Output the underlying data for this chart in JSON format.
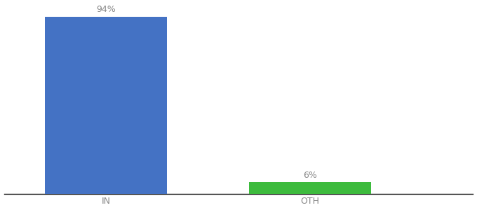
{
  "categories": [
    "IN",
    "OTH"
  ],
  "values": [
    94,
    6
  ],
  "bar_colors": [
    "#4472c4",
    "#3dbb3d"
  ],
  "label_texts": [
    "94%",
    "6%"
  ],
  "background_color": "#ffffff",
  "ylim": [
    0,
    100
  ],
  "x_positions": [
    1,
    2
  ],
  "bar_width": 0.6,
  "label_fontsize": 9,
  "tick_fontsize": 9,
  "tick_color": "#888888",
  "label_color": "#888888",
  "xlim": [
    0.5,
    2.8
  ]
}
